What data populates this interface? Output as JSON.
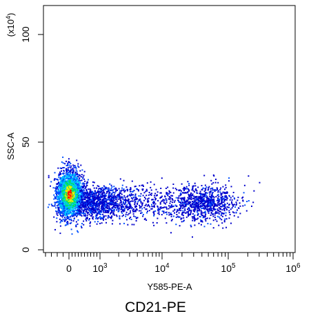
{
  "chart_data": {
    "type": "heatmap",
    "subtype": "flow-cytometry density dot plot",
    "caption": "CD21-PE",
    "xlabel": "Y585-PE-A",
    "ylabel": "SSC-A",
    "y_multiplier": "(x10",
    "y_multiplier_exp": "4",
    "y_multiplier_close": ")",
    "x_scale": "biexponential (log)",
    "xlim": [
      -400,
      1000000
    ],
    "ylim": [
      0,
      110
    ],
    "x_ticks": [
      {
        "value": 0,
        "label": "0",
        "exp": ""
      },
      {
        "value": 1000,
        "label": "10",
        "exp": "3"
      },
      {
        "value": 10000,
        "label": "10",
        "exp": "4"
      },
      {
        "value": 100000,
        "label": "10",
        "exp": "5"
      },
      {
        "value": 1000000,
        "label": "10",
        "exp": "6"
      }
    ],
    "y_ticks": [
      {
        "value": 0,
        "label": "0"
      },
      {
        "value": 50,
        "label": "50"
      },
      {
        "value": 100,
        "label": "100"
      }
    ],
    "populations": [
      {
        "name": "main cluster",
        "x_center": 50,
        "y_center": 26,
        "density": "highest",
        "y_range": [
          12,
          42
        ]
      },
      {
        "name": "low tail",
        "x_range": [
          300,
          3000
        ],
        "y_center": 22,
        "density": "medium"
      },
      {
        "name": "positive cluster",
        "x_center": 40000,
        "y_center": 22,
        "density": "low",
        "y_range": [
          12,
          40
        ]
      }
    ],
    "colormap": [
      "#0000cc",
      "#0050ff",
      "#00c8ff",
      "#00e060",
      "#f0f000",
      "#ff9000",
      "#ff0000"
    ],
    "grid": false,
    "legend": "none"
  }
}
